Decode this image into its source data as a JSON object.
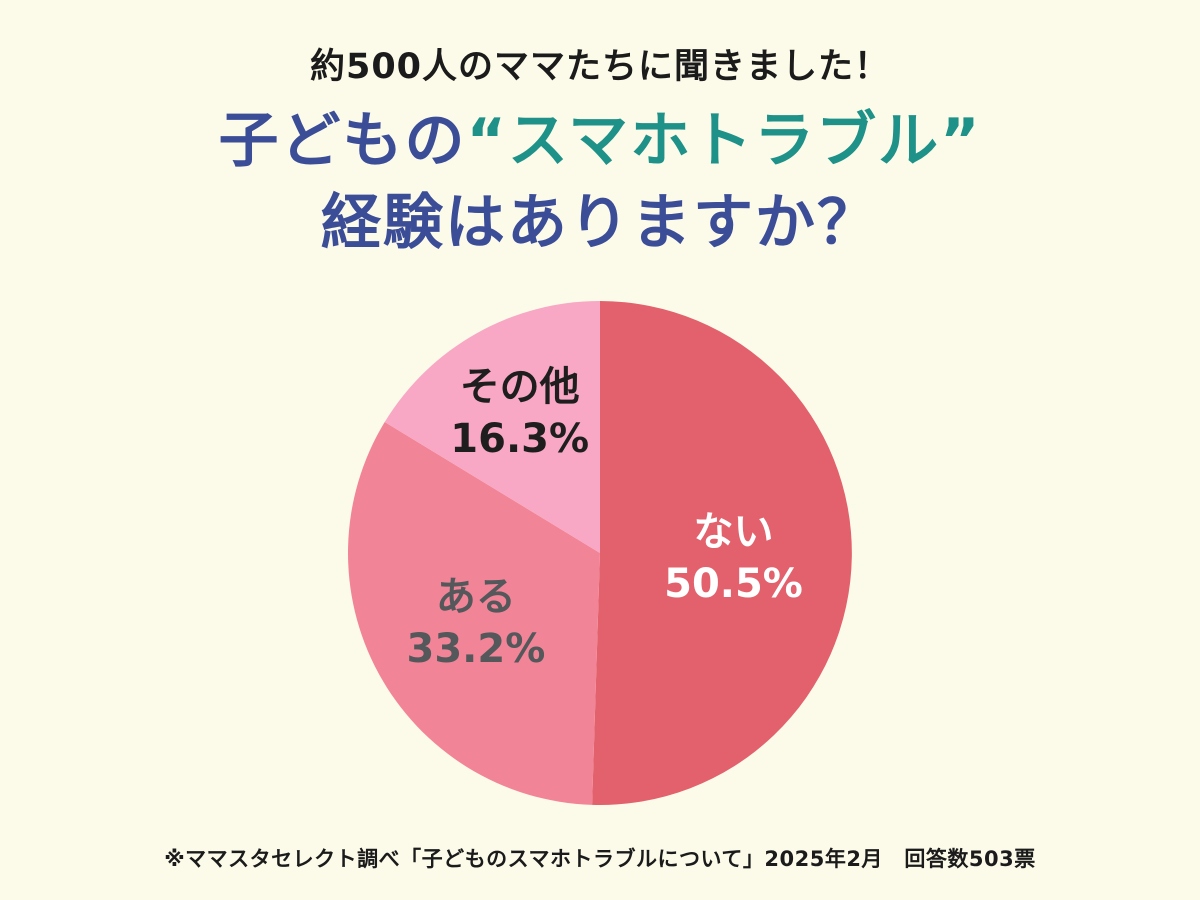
{
  "page": {
    "bg": "#fcfbea",
    "text_color": "#1b1b1b",
    "subtitle": "約500人のママたちに聞きました！",
    "title": {
      "line1_lead": "子どもの",
      "line1_accent": "“スマホトラブル”",
      "line2": "経験はありますか？",
      "lead_color": "#3c4d98",
      "accent_color": "#1e9188"
    },
    "footnote": "※ママスタセレクト調べ「子どものスマホトラブルについて」2025年2月　回答数503票"
  },
  "chart_data": {
    "type": "pie",
    "title": "子どもの“スマホトラブル”経験はありますか？",
    "unit": "%",
    "start_angle": -90,
    "direction": "clockwise",
    "legend_position": "inside-slices",
    "slices": [
      {
        "label": "ない",
        "value": 50.5,
        "display": "50.5%",
        "color": "#e2616c",
        "text_color": "#ffffff",
        "label_r": 0.53
      },
      {
        "label": "ある",
        "value": 33.2,
        "display": "33.2%",
        "color": "#f28498",
        "text_color": "#54585b",
        "label_r": 0.56
      },
      {
        "label": "その他",
        "value": 16.3,
        "display": "16.3%",
        "color": "#f8a8c4",
        "text_color": "#1e1e1e",
        "label_r": 0.65
      }
    ]
  }
}
